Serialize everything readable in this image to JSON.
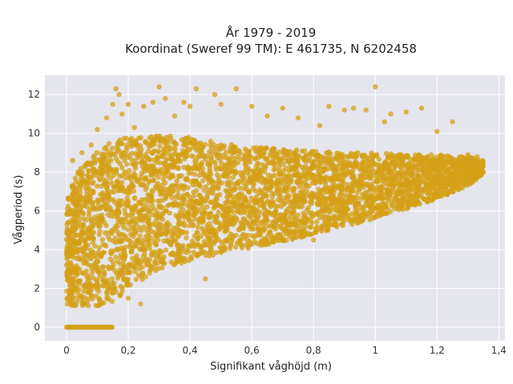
{
  "chart_data": {
    "type": "scatter",
    "title_line1": "År 1979 - 2019",
    "title_line2": "Koordinat (Sweref 99 TM): E 461735, N 6202458",
    "xlabel": "Signifikant våghöjd (m)",
    "ylabel": "Vågperiod (s)",
    "xlim": [
      -0.07,
      1.42
    ],
    "ylim": [
      -0.7,
      13.0
    ],
    "x_ticks": [
      0,
      0.2,
      0.4,
      0.6,
      0.8,
      1,
      1.2,
      1.4
    ],
    "x_tick_labels": [
      "0",
      "0,2",
      "0,4",
      "0,6",
      "0,8",
      "1",
      "1,2",
      "1,4"
    ],
    "y_ticks": [
      0,
      2,
      4,
      6,
      8,
      10,
      12
    ],
    "y_tick_labels": [
      "0",
      "2",
      "4",
      "6",
      "8",
      "10",
      "12"
    ],
    "grid": true,
    "legend": "none",
    "marker_color": "#d4a017",
    "plot_bg": "#e5e5ee",
    "series": [
      {
        "values": [
          [
            0.0,
            3.2
          ],
          [
            0.01,
            6.0
          ],
          [
            0.02,
            1.5
          ],
          [
            0.02,
            8.6
          ],
          [
            0.03,
            7.0
          ],
          [
            0.04,
            2.4
          ],
          [
            0.05,
            9.0
          ],
          [
            0.06,
            1.2
          ],
          [
            0.07,
            5.0
          ],
          [
            0.08,
            9.4
          ],
          [
            0.09,
            3.0
          ],
          [
            0.1,
            10.2
          ],
          [
            0.11,
            1.2
          ],
          [
            0.12,
            8.3
          ],
          [
            0.13,
            10.8
          ],
          [
            0.14,
            2.0
          ],
          [
            0.15,
            11.5
          ],
          [
            0.16,
            12.3
          ],
          [
            0.17,
            12.0
          ],
          [
            0.18,
            11.0
          ],
          [
            0.2,
            1.5
          ],
          [
            0.2,
            11.5
          ],
          [
            0.22,
            10.3
          ],
          [
            0.24,
            1.2
          ],
          [
            0.25,
            11.4
          ],
          [
            0.28,
            11.6
          ],
          [
            0.3,
            12.4
          ],
          [
            0.32,
            11.8
          ],
          [
            0.35,
            10.9
          ],
          [
            0.38,
            11.6
          ],
          [
            0.4,
            11.4
          ],
          [
            0.42,
            12.3
          ],
          [
            0.45,
            2.5
          ],
          [
            0.48,
            12.0
          ],
          [
            0.5,
            11.5
          ],
          [
            0.55,
            12.3
          ],
          [
            0.6,
            11.4
          ],
          [
            0.65,
            10.9
          ],
          [
            0.7,
            11.3
          ],
          [
            0.75,
            10.8
          ],
          [
            0.8,
            4.5
          ],
          [
            0.82,
            10.4
          ],
          [
            0.85,
            11.4
          ],
          [
            0.9,
            11.2
          ],
          [
            0.93,
            11.3
          ],
          [
            0.97,
            11.2
          ],
          [
            1.0,
            12.4
          ],
          [
            1.03,
            10.6
          ],
          [
            1.05,
            11.0
          ],
          [
            1.1,
            11.1
          ],
          [
            1.15,
            11.3
          ],
          [
            1.2,
            10.1
          ],
          [
            1.25,
            10.6
          ],
          [
            1.28,
            8.2
          ],
          [
            1.3,
            8.9
          ],
          [
            1.33,
            8.8
          ],
          [
            1.35,
            8.3
          ]
        ],
        "zero_period_range": [
          0.0,
          0.15
        ],
        "zero_period_value": 0,
        "envelope": {
          "x": [
            0.0,
            0.05,
            0.1,
            0.15,
            0.2,
            0.3,
            0.4,
            0.5,
            0.6,
            0.7,
            0.8,
            0.9,
            1.0,
            1.1,
            1.2,
            1.3,
            1.35
          ],
          "y_low": [
            1.1,
            1.1,
            1.1,
            1.2,
            2.0,
            3.0,
            3.4,
            3.8,
            4.1,
            4.4,
            4.8,
            5.2,
            5.6,
            6.1,
            6.6,
            7.3,
            7.9
          ],
          "y_high": [
            6.8,
            8.4,
            9.2,
            9.6,
            9.8,
            9.9,
            9.8,
            9.5,
            9.3,
            9.2,
            9.1,
            9.0,
            9.0,
            8.9,
            8.9,
            8.8,
            8.6
          ]
        }
      }
    ]
  }
}
